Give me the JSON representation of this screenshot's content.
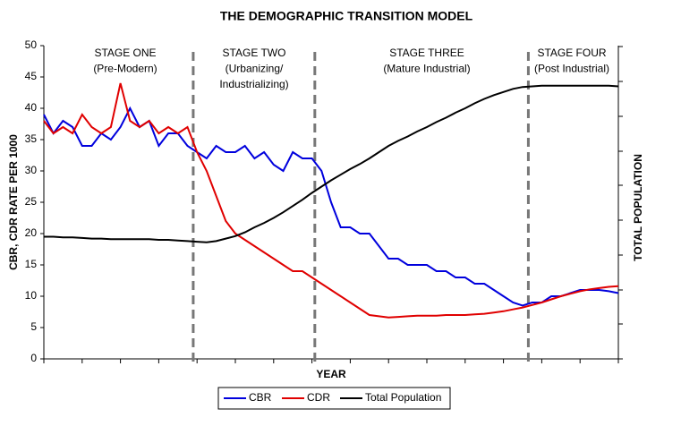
{
  "chart_data": {
    "type": "line",
    "title": "THE DEMOGRAPHIC TRANSITION MODEL",
    "x_label": "YEAR",
    "y_label": "CBR, CDR RATE PER 1000",
    "y2_label": "TOTAL POPULATION",
    "xlim": [
      0,
      60
    ],
    "xticks": [
      0,
      4,
      8,
      12,
      16,
      20,
      24,
      28,
      32,
      36,
      40,
      44,
      48,
      52,
      56,
      60
    ],
    "ylim": [
      0,
      50
    ],
    "yticks": [
      0,
      5,
      10,
      15,
      20,
      25,
      30,
      35,
      40,
      45,
      50
    ],
    "x": [
      0,
      1,
      2,
      3,
      4,
      5,
      6,
      7,
      8,
      9,
      10,
      11,
      12,
      13,
      14,
      15,
      16,
      17,
      18,
      19,
      20,
      21,
      22,
      23,
      24,
      25,
      26,
      27,
      28,
      29,
      30,
      31,
      32,
      33,
      34,
      35,
      36,
      37,
      38,
      39,
      40,
      41,
      42,
      43,
      44,
      45,
      46,
      47,
      48,
      49,
      50,
      51,
      52,
      53,
      54,
      55,
      56,
      57,
      58,
      59,
      60
    ],
    "stage_dividers": [
      15.6,
      28.3,
      50.6
    ],
    "annotations": [
      [
        "STAGE ONE",
        "(Pre-Modern)"
      ],
      [
        "STAGE TWO",
        "(Urbanizing/",
        "Industrializing)"
      ],
      [
        "STAGE THREE",
        "(Mature Industrial)"
      ],
      [
        "STAGE FOUR",
        "(Post Industrial)"
      ]
    ],
    "series": [
      {
        "name": "CBR",
        "color": "#0000dd",
        "values": [
          39,
          36,
          38,
          37,
          34,
          34,
          36,
          35,
          37,
          40,
          37,
          38,
          34,
          36,
          36,
          34,
          33,
          32,
          34,
          33,
          33,
          34,
          32,
          33,
          31,
          30,
          33,
          32,
          32,
          30,
          25,
          21,
          21,
          20,
          20,
          18,
          16,
          16,
          15,
          15,
          15,
          14,
          14,
          13,
          13,
          12,
          12,
          11,
          10,
          9,
          8.5,
          9,
          9,
          10,
          10,
          10.5,
          11,
          11,
          11,
          10.8,
          10.5
        ]
      },
      {
        "name": "CDR",
        "color": "#e00000",
        "values": [
          38,
          36,
          37,
          36,
          39,
          37,
          36,
          37,
          44,
          38,
          37,
          38,
          36,
          37,
          36,
          37,
          33,
          30,
          26,
          22,
          20,
          19,
          18,
          17,
          16,
          15,
          14,
          14,
          13,
          12,
          11,
          10,
          9,
          8,
          7,
          6.8,
          6.6,
          6.7,
          6.8,
          6.9,
          6.9,
          6.9,
          7,
          7,
          7,
          7.1,
          7.2,
          7.4,
          7.6,
          7.9,
          8.2,
          8.6,
          9,
          9.5,
          10,
          10.4,
          10.8,
          11.1,
          11.3,
          11.5,
          11.6
        ]
      },
      {
        "name": "Total Population",
        "color": "#000000",
        "values": [
          19.5,
          19.5,
          19.4,
          19.4,
          19.3,
          19.2,
          19.2,
          19.1,
          19.1,
          19.1,
          19.1,
          19.1,
          19,
          19,
          18.9,
          18.8,
          18.7,
          18.6,
          18.8,
          19.2,
          19.6,
          20.2,
          21,
          21.7,
          22.5,
          23.4,
          24.4,
          25.4,
          26.5,
          27.5,
          28.5,
          29.4,
          30.3,
          31.1,
          32,
          33,
          34,
          34.8,
          35.5,
          36.3,
          37,
          37.8,
          38.5,
          39.3,
          40,
          40.8,
          41.5,
          42.1,
          42.6,
          43.1,
          43.4,
          43.5,
          43.6,
          43.6,
          43.6,
          43.6,
          43.6,
          43.6,
          43.6,
          43.6,
          43.5
        ]
      }
    ]
  }
}
